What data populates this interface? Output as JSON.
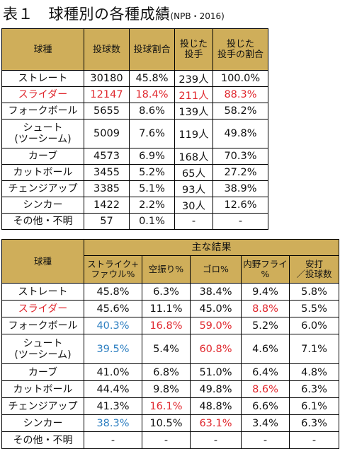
{
  "title": {
    "main": "表１　球種別の各種成績",
    "sub": "(NPB・2016)"
  },
  "table1": {
    "headers": [
      "球種",
      "投球数",
      "投球割合",
      "投じた\n投手",
      "投じた\n投手の割合"
    ],
    "rows": [
      {
        "name": "ストレート",
        "cells": [
          "30180",
          "45.8%",
          "239人",
          "100.0%"
        ],
        "color": ""
      },
      {
        "name": "スライダー",
        "cells": [
          "12147",
          "18.4%",
          "211人",
          "88.3%"
        ],
        "color": "red"
      },
      {
        "name": "フォークボール",
        "cells": [
          "5655",
          "8.6%",
          "139人",
          "58.2%"
        ],
        "color": ""
      },
      {
        "name": "シュート\n(ツーシーム)",
        "cells": [
          "5009",
          "7.6%",
          "119人",
          "49.8%"
        ],
        "color": ""
      },
      {
        "name": "カーブ",
        "cells": [
          "4573",
          "6.9%",
          "168人",
          "70.3%"
        ],
        "color": ""
      },
      {
        "name": "カットボール",
        "cells": [
          "3455",
          "5.2%",
          "65人",
          "27.2%"
        ],
        "color": ""
      },
      {
        "name": "チェンジアップ",
        "cells": [
          "3385",
          "5.1%",
          "93人",
          "38.9%"
        ],
        "color": ""
      },
      {
        "name": "シンカー",
        "cells": [
          "1422",
          "2.2%",
          "30人",
          "12.6%"
        ],
        "color": ""
      },
      {
        "name": "その他・不明",
        "cells": [
          "57",
          "0.1%",
          "-",
          "-"
        ],
        "color": ""
      }
    ]
  },
  "table2": {
    "header_name": "球種",
    "group_header": "主な結果",
    "sub_headers": [
      "ストライク+\nファウル%",
      "空振り%",
      "ゴロ%",
      "内野フライ\n%",
      "安打\n／投球数"
    ],
    "rows": [
      {
        "name": "ストレート",
        "name_color": "",
        "cells": [
          {
            "v": "45.8%",
            "c": ""
          },
          {
            "v": "6.3%",
            "c": ""
          },
          {
            "v": "38.4%",
            "c": ""
          },
          {
            "v": "9.4%",
            "c": ""
          },
          {
            "v": "5.8%",
            "c": ""
          }
        ]
      },
      {
        "name": "スライダー",
        "name_color": "red",
        "cells": [
          {
            "v": "45.6%",
            "c": ""
          },
          {
            "v": "11.1%",
            "c": ""
          },
          {
            "v": "45.0%",
            "c": ""
          },
          {
            "v": "8.8%",
            "c": "red"
          },
          {
            "v": "5.5%",
            "c": ""
          }
        ]
      },
      {
        "name": "フォークボール",
        "name_color": "",
        "cells": [
          {
            "v": "40.3%",
            "c": "blue"
          },
          {
            "v": "16.8%",
            "c": "red"
          },
          {
            "v": "59.0%",
            "c": "red"
          },
          {
            "v": "5.2%",
            "c": ""
          },
          {
            "v": "6.0%",
            "c": ""
          }
        ]
      },
      {
        "name": "シュート\n(ツーシーム)",
        "name_color": "",
        "cells": [
          {
            "v": "39.5%",
            "c": "blue"
          },
          {
            "v": "5.4%",
            "c": ""
          },
          {
            "v": "60.8%",
            "c": "red"
          },
          {
            "v": "4.6%",
            "c": ""
          },
          {
            "v": "7.1%",
            "c": ""
          }
        ]
      },
      {
        "name": "カーブ",
        "name_color": "",
        "cells": [
          {
            "v": "41.0%",
            "c": ""
          },
          {
            "v": "6.8%",
            "c": ""
          },
          {
            "v": "51.0%",
            "c": ""
          },
          {
            "v": "6.4%",
            "c": ""
          },
          {
            "v": "4.8%",
            "c": ""
          }
        ]
      },
      {
        "name": "カットボール",
        "name_color": "",
        "cells": [
          {
            "v": "44.4%",
            "c": ""
          },
          {
            "v": "9.8%",
            "c": ""
          },
          {
            "v": "49.8%",
            "c": ""
          },
          {
            "v": "8.6%",
            "c": "red"
          },
          {
            "v": "6.3%",
            "c": ""
          }
        ]
      },
      {
        "name": "チェンジアップ",
        "name_color": "",
        "cells": [
          {
            "v": "41.3%",
            "c": ""
          },
          {
            "v": "16.1%",
            "c": "red"
          },
          {
            "v": "48.8%",
            "c": ""
          },
          {
            "v": "6.6%",
            "c": ""
          },
          {
            "v": "6.1%",
            "c": ""
          }
        ]
      },
      {
        "name": "シンカー",
        "name_color": "",
        "cells": [
          {
            "v": "38.3%",
            "c": "blue"
          },
          {
            "v": "10.5%",
            "c": ""
          },
          {
            "v": "63.1%",
            "c": "red"
          },
          {
            "v": "3.4%",
            "c": ""
          },
          {
            "v": "6.3%",
            "c": ""
          }
        ]
      },
      {
        "name": "その他・不明",
        "name_color": "",
        "cells": [
          {
            "v": "-",
            "c": ""
          },
          {
            "v": "-",
            "c": ""
          },
          {
            "v": "-",
            "c": ""
          },
          {
            "v": "-",
            "c": ""
          },
          {
            "v": "-",
            "c": ""
          }
        ]
      }
    ]
  },
  "colors": {
    "header_bg": "#cfae5a",
    "red": "#e0282e",
    "blue": "#2d7fc1"
  }
}
